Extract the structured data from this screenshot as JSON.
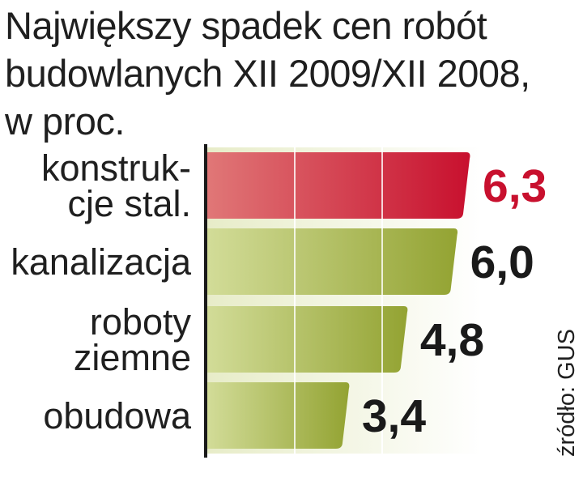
{
  "title_lines": [
    "Największy spadek cen robót",
    "budowlanych XII 2009/XII 2008,",
    "w proc."
  ],
  "source": "źródło: GUS",
  "colors": {
    "highlight": "#c8102e",
    "bar": "#9aaa3a",
    "text": "#1a1a1a"
  },
  "chart_data": {
    "type": "bar",
    "orientation": "horizontal",
    "categories": [
      [
        "konstruk-",
        "cje stal."
      ],
      [
        "kanalizacja"
      ],
      [
        "roboty",
        "ziemne"
      ],
      [
        "obudowa"
      ]
    ],
    "values": [
      6.3,
      6.0,
      4.8,
      3.4
    ],
    "value_labels": [
      "6,3",
      "6,0",
      "4,8",
      "3,4"
    ],
    "highlight_index": 0,
    "xlim": [
      0,
      6.3
    ],
    "grid": true
  }
}
